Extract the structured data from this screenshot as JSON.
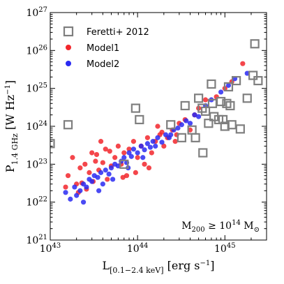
{
  "chart_data": {
    "type": "scatter",
    "xscale": "log",
    "yscale": "log",
    "xlim": [
      1e+43,
      3e+45
    ],
    "ylim": [
      1e+21,
      1e+27
    ],
    "x_tick_mantissa": "10",
    "x_tick_exponents": [
      "43",
      "44",
      "45"
    ],
    "y_tick_mantissa": "10",
    "y_tick_exponents": [
      "21",
      "22",
      "23",
      "24",
      "25",
      "26",
      "27"
    ],
    "xlabel": {
      "main": "L",
      "sub": "[0.1−2.4 keV]",
      "unit": " [erg s",
      "unit_exp": "−1",
      "close": "]"
    },
    "ylabel": {
      "main": "P",
      "sub": "1.4 GHz",
      "unit": " [W Hz",
      "unit_exp": "−1",
      "close": "]"
    },
    "annotation": {
      "text": "M",
      "sub": "200",
      "rel": " ≥ 10",
      "exp": "14",
      "unit": " M",
      "unit_sub": "⊙"
    },
    "legend": {
      "position": "upper-left",
      "entries": [
        "Feretti+ 2012",
        "Model1",
        "Model2"
      ]
    },
    "colors": {
      "feretti": "#7f7f7f",
      "model1": "#f2262b",
      "model2": "#2a2af2"
    },
    "series": [
      {
        "name": "Feretti+ 2012",
        "marker": "open-square",
        "x": [
          1e+43,
          1.6e+43,
          7e+43,
          9.5e+43,
          1.05e+44,
          2.4e+44,
          3.2e+44,
          3.5e+44,
          4.2e+44,
          4.6e+44,
          5e+44,
          5.5e+44,
          5.6e+44,
          6e+44,
          6.5e+44,
          7e+44,
          7.2e+44,
          7.5e+44,
          8.5e+44,
          9e+44,
          9.5e+44,
          1e+45,
          1.05e+45,
          1.1e+45,
          1.15e+45,
          1.2e+45,
          1.35e+45,
          1.5e+45,
          1.8e+45,
          2.1e+45,
          2.2e+45,
          2.4e+45
        ],
        "y": [
          3.5e+23,
          1.1e+24,
          1e+23,
          3e+24,
          1.5e+24,
          1.1e+24,
          5e+23,
          3.5e+24,
          8e+23,
          5e+23,
          5.5e+24,
          3e+24,
          2e+23,
          2.5e+24,
          1.2e+24,
          1.3e+25,
          4e+24,
          1.8e+24,
          1.5e+24,
          4.5e+24,
          1.5e+24,
          1e+24,
          4e+24,
          1.1e+25,
          3.5e+24,
          1.1e+24,
          1.6e+25,
          8.5e+23,
          5.5e+24,
          2.2e+25,
          1.5e+26,
          1.6e+25
        ]
      },
      {
        "name": "Model1",
        "marker": "filled-circle",
        "x": [
          1.6e+43,
          1.8e+43,
          2e+43,
          2.2e+43,
          2.5e+43,
          2.8e+43,
          3e+43,
          3.3e+43,
          3.6e+43,
          4e+43,
          4.5e+43,
          5e+43,
          2.1e+43,
          2.6e+43,
          3.1e+43,
          3.8e+43,
          4.3e+43,
          5.5e+43,
          6e+43,
          6.5e+43,
          7e+43,
          7.5e+43,
          8e+43,
          9e+43,
          1e+44,
          1.1e+44,
          1.2e+44,
          1.3e+44,
          1.45e+44,
          1.6e+44,
          1.8e+44,
          2e+44,
          2.2e+44,
          2.5e+44,
          2.8e+44,
          3e+44,
          3.5e+44,
          4e+44,
          4.5e+44,
          5e+44,
          6e+44,
          8e+44,
          1e+45,
          1.2e+45,
          1.6e+45,
          1.7e+44,
          1.9e+44,
          1.5e+43,
          2.3e+43,
          3.4e+43,
          4.8e+43,
          6.8e+43,
          9.5e+43,
          1.35e+44,
          2.7e+44
        ],
        "y": [
          5e+22,
          1.5e+23,
          3e+22,
          8e+22,
          1e+23,
          6e+22,
          2e+23,
          1.2e+23,
          7e+22,
          1.1e+23,
          4e+22,
          9e+22,
          1.8e+22,
          2.2e+22,
          3.5e+22,
          4e+23,
          2.5e+23,
          1.5e+23,
          3e+23,
          1e+23,
          2e+23,
          5e+22,
          2.5e+23,
          4e+23,
          1.5e+23,
          3e+23,
          1e+23,
          5e+23,
          2e+23,
          4e+23,
          6e+23,
          3e+23,
          5e+23,
          8e+23,
          6e+23,
          1.2e+24,
          1.5e+24,
          8e+23,
          2e+24,
          3e+24,
          5e+24,
          6e+24,
          1e+25,
          1.5e+25,
          4.5e+25,
          1e+24,
          7e+23,
          2.5e+22,
          3.2e+22,
          1.8e+23,
          2.2e+23,
          4.5e+22,
          6e+22,
          8e+22,
          4e+23
        ]
      },
      {
        "name": "Model2",
        "marker": "filled-circle",
        "x": [
          1.5e+43,
          1.7e+43,
          1.9e+43,
          2e+43,
          2.2e+43,
          2.4e+43,
          2.6e+43,
          2.8e+43,
          3e+43,
          3.2e+43,
          3.5e+43,
          3.8e+43,
          4e+43,
          4.3e+43,
          4.7e+43,
          5e+43,
          5.5e+43,
          6e+43,
          6.5e+43,
          7e+43,
          7.5e+43,
          8e+43,
          8.5e+43,
          9e+43,
          1e+44,
          1.1e+44,
          1.2e+44,
          1.3e+44,
          1.4e+44,
          1.5e+44,
          1.7e+44,
          1.9e+44,
          2.1e+44,
          2.3e+44,
          2.6e+44,
          2.9e+44,
          3.2e+44,
          3.6e+44,
          4e+44,
          4.5e+44,
          5e+44,
          6e+44,
          7e+44,
          9e+44,
          1.1e+45,
          1.3e+45,
          1.8e+45,
          2.4e+43,
          3.6e+43,
          5.2e+43,
          7.8e+43,
          1.15e+44,
          1.6e+44,
          2.4e+44
        ],
        "y": [
          1.8e+22,
          1.2e+22,
          2.5e+22,
          1.5e+22,
          2e+22,
          3e+22,
          2.5e+22,
          4e+22,
          3.5e+22,
          5e+22,
          4.5e+22,
          6e+22,
          3e+22,
          7e+22,
          5.5e+22,
          8e+22,
          1e+23,
          9e+22,
          1.2e+23,
          1.5e+23,
          1.1e+23,
          2e+23,
          1.6e+23,
          2.5e+23,
          2e+23,
          3e+23,
          2.4e+23,
          3.5e+23,
          2.8e+23,
          4e+23,
          5e+23,
          3.8e+23,
          6e+23,
          5e+23,
          8e+23,
          9e+23,
          1.1e+24,
          1.4e+24,
          1.2e+24,
          2e+24,
          1.8e+24,
          3.5e+24,
          5e+24,
          8e+24,
          1.2e+25,
          1.8e+25,
          2.5e+25,
          1e+22,
          2e+22,
          4e+22,
          8e+22,
          1.5e+23,
          3e+23,
          6e+23
        ]
      }
    ]
  }
}
